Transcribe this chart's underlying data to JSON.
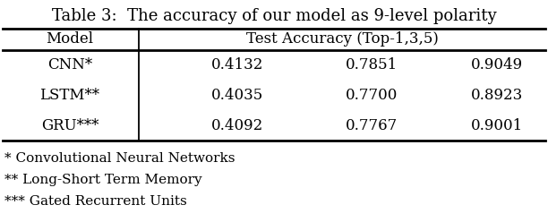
{
  "title": "Table 3:  The accuracy of our model as 9-level polarity",
  "col_headers": [
    "Model",
    "Test Accuracy (Top-1,3,5)"
  ],
  "rows": [
    [
      "CNN*",
      "0.4132",
      "0.7851",
      "0.9049"
    ],
    [
      "LSTM**",
      "0.4035",
      "0.7700",
      "0.8923"
    ],
    [
      "GRU***",
      "0.4092",
      "0.7767",
      "0.9001"
    ]
  ],
  "footnotes": [
    "* Convolutional Neural Networks",
    "** Long-Short Term Memory",
    "*** Gated Recurrent Units"
  ],
  "bg_color": "#ffffff",
  "text_color": "#000000",
  "font_family": "serif",
  "title_fontsize": 13,
  "header_fontsize": 12,
  "data_fontsize": 12,
  "footnote_fontsize": 11
}
